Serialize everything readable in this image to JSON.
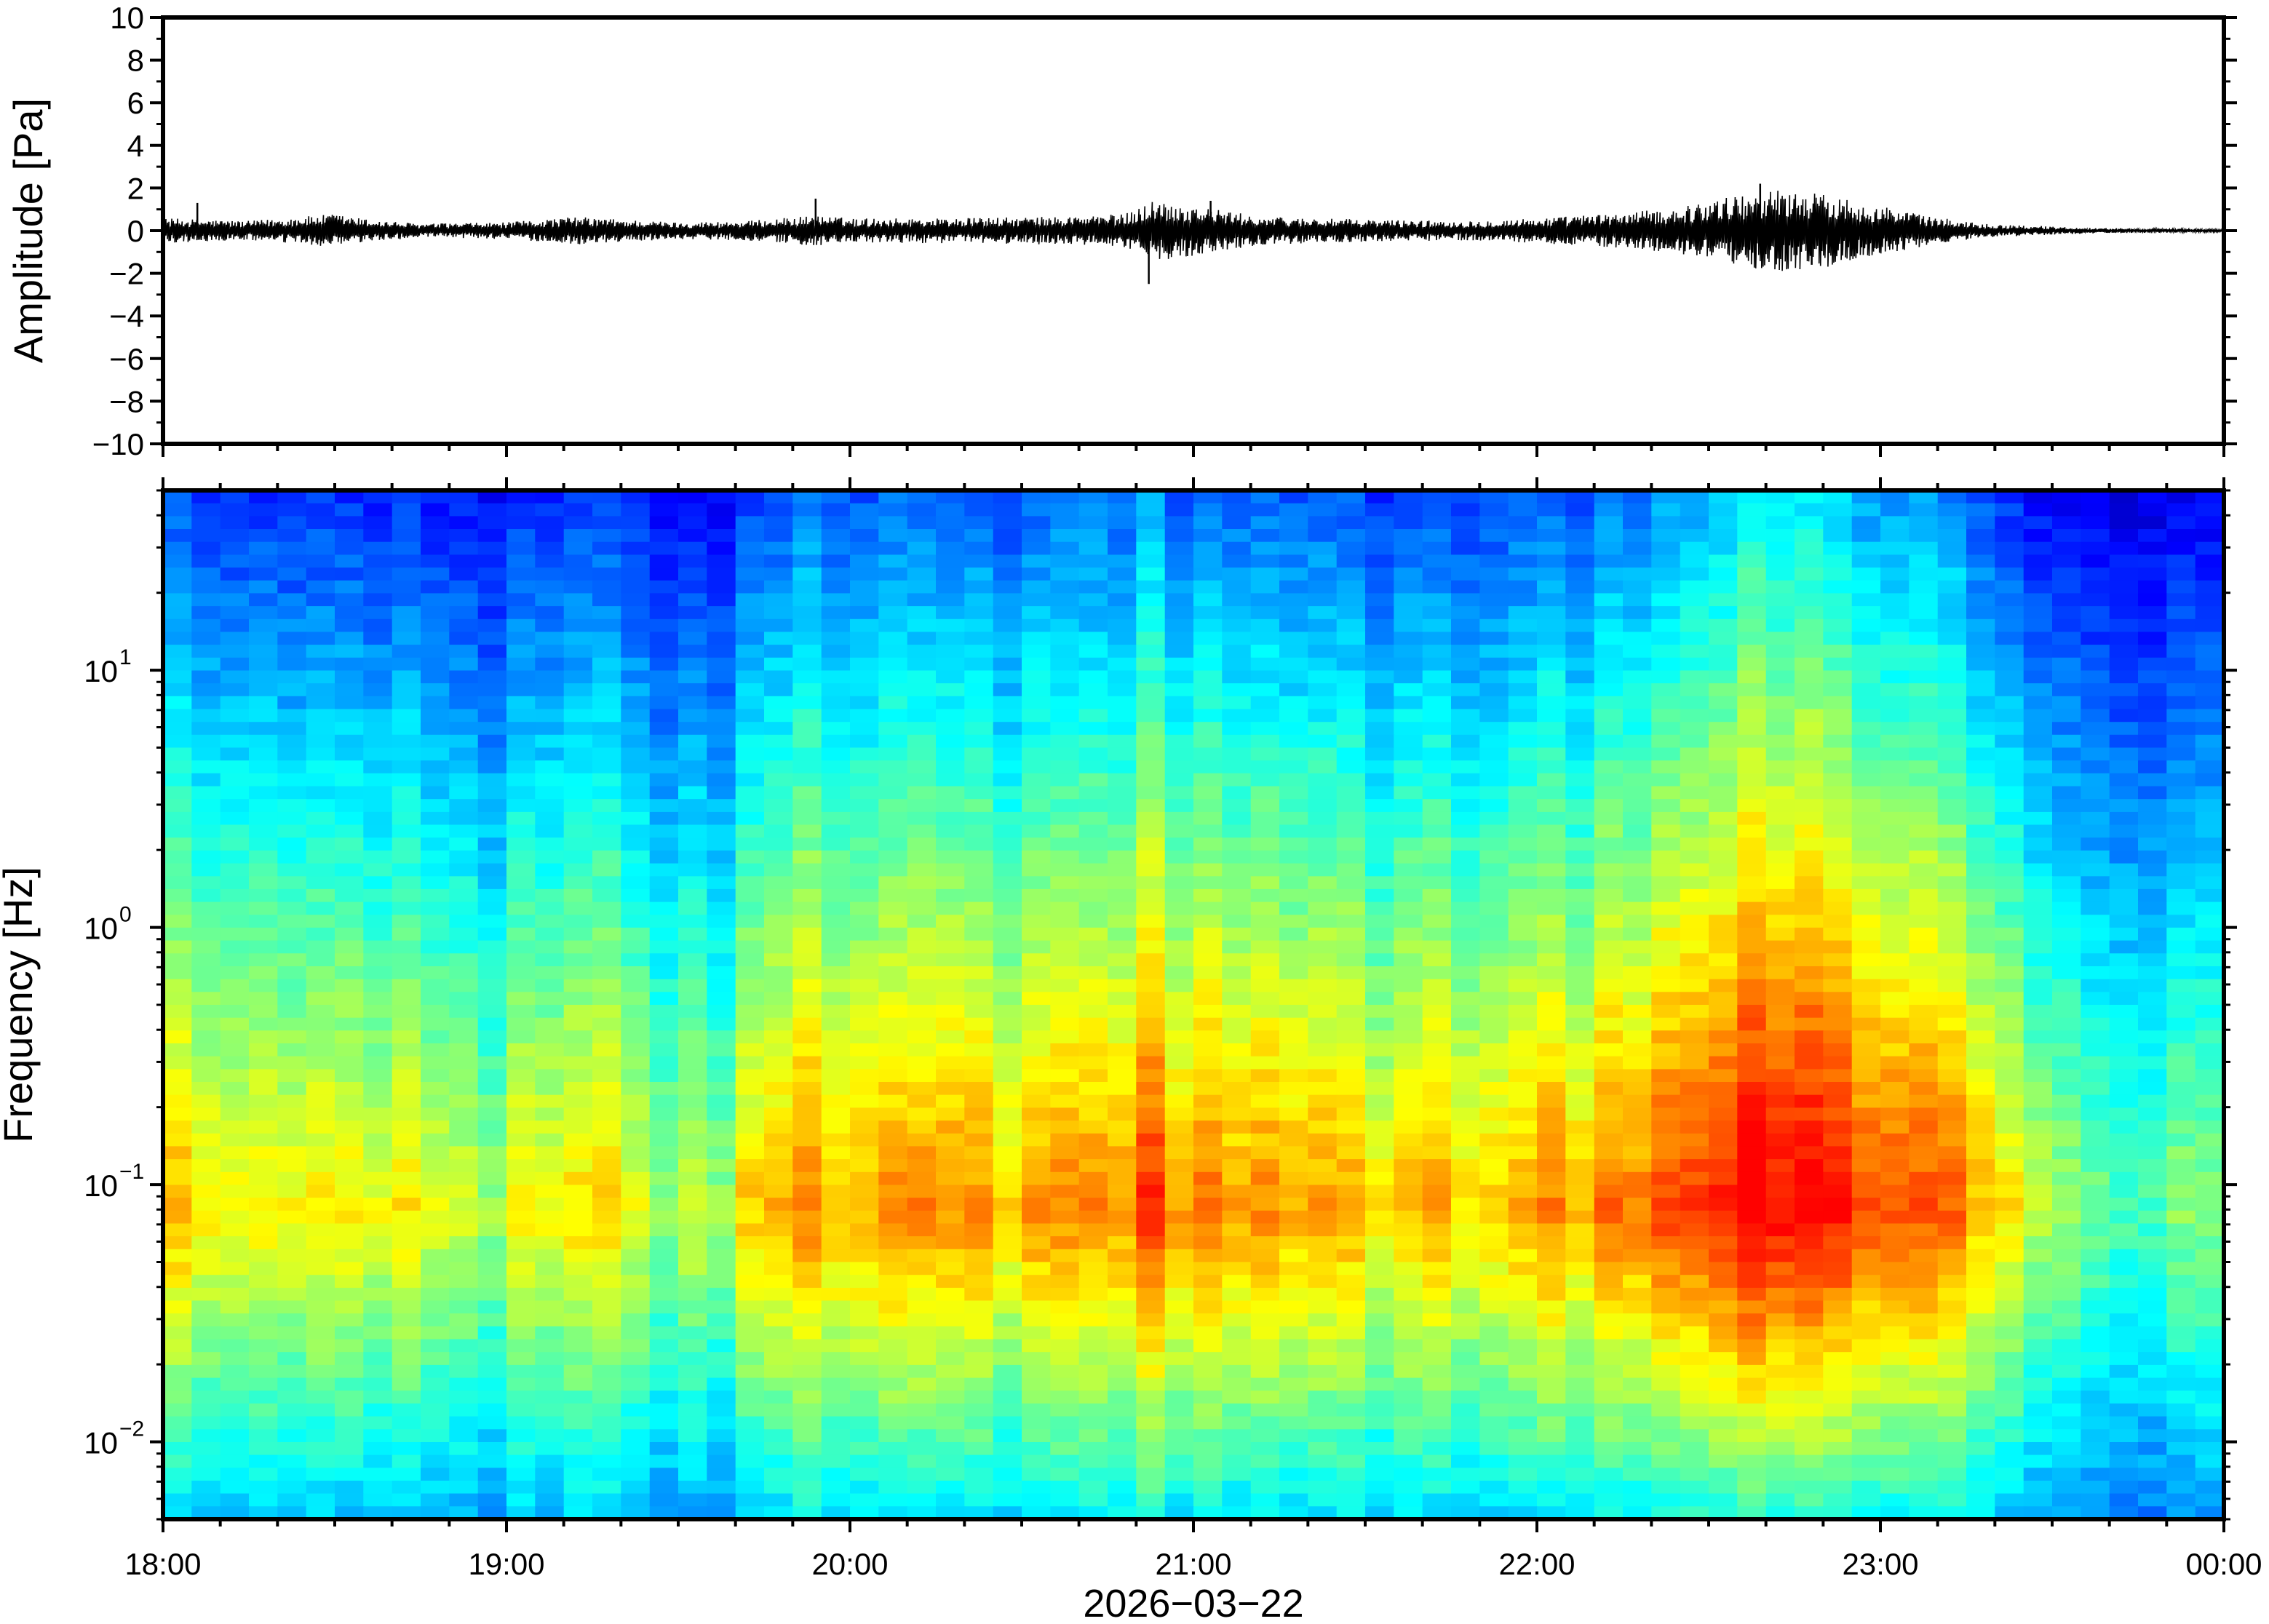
{
  "chart_data": [
    {
      "type": "line",
      "panel": "waveform",
      "title": "",
      "xlabel": "",
      "ylabel": "Amplitude [Pa]",
      "ylim": [
        -10,
        10
      ],
      "yticks": [
        {
          "value": 10,
          "label": "10"
        },
        {
          "value": 8,
          "label": "8"
        },
        {
          "value": 6,
          "label": "6"
        },
        {
          "value": 4,
          "label": "4"
        },
        {
          "value": 2,
          "label": "2"
        },
        {
          "value": 0,
          "label": "0"
        },
        {
          "value": -2,
          "label": "−2"
        },
        {
          "value": -4,
          "label": "−4"
        },
        {
          "value": -6,
          "label": "−6"
        },
        {
          "value": -8,
          "label": "−8"
        },
        {
          "value": -10,
          "label": "−10"
        }
      ],
      "xlim": [
        "18:00",
        "00:00"
      ],
      "envelope_x_hours": [
        18.0,
        18.25,
        18.5,
        18.6,
        18.75,
        19.0,
        19.2,
        19.5,
        19.7,
        19.9,
        20.0,
        20.3,
        20.6,
        20.8,
        20.88,
        21.0,
        21.2,
        21.5,
        21.8,
        22.0,
        22.2,
        22.4,
        22.55,
        22.7,
        22.85,
        23.0,
        23.15,
        23.3,
        23.6,
        24.0
      ],
      "envelope_amplitude_pa": [
        0.45,
        0.35,
        0.6,
        0.4,
        0.25,
        0.3,
        0.5,
        0.3,
        0.35,
        0.55,
        0.45,
        0.45,
        0.5,
        0.6,
        1.1,
        0.9,
        0.5,
        0.4,
        0.35,
        0.45,
        0.6,
        0.8,
        1.2,
        1.5,
        1.3,
        0.9,
        0.5,
        0.25,
        0.1,
        0.05
      ],
      "peaks": [
        {
          "x_hours": 18.1,
          "value": 1.3
        },
        {
          "x_hours": 19.9,
          "value": 1.5
        },
        {
          "x_hours": 20.87,
          "value": -2.5
        },
        {
          "x_hours": 21.05,
          "value": 1.4
        },
        {
          "x_hours": 22.65,
          "value": 2.2
        },
        {
          "x_hours": 22.8,
          "value": -1.6
        }
      ]
    },
    {
      "type": "heatmap",
      "panel": "spectrogram",
      "title": "",
      "xlabel": "2026−03−22",
      "ylabel": "Frequency [Hz]",
      "yscale": "log",
      "ylim": [
        0.005,
        50
      ],
      "yticks": [
        {
          "value": 10,
          "base": "10",
          "exp": "1"
        },
        {
          "value": 1,
          "base": "10",
          "exp": "0"
        },
        {
          "value": 0.1,
          "base": "10",
          "exp": "−1"
        },
        {
          "value": 0.01,
          "base": "10",
          "exp": "−2"
        }
      ],
      "xlim": [
        "18:00",
        "00:00"
      ],
      "xticks": [
        {
          "hour": 18,
          "label": "18:00"
        },
        {
          "hour": 19,
          "label": "19:00"
        },
        {
          "hour": 20,
          "label": "20:00"
        },
        {
          "hour": 21,
          "label": "21:00"
        },
        {
          "hour": 22,
          "label": "22:00"
        },
        {
          "hour": 23,
          "label": "23:00"
        },
        {
          "hour": 24,
          "label": "00:00"
        }
      ],
      "colormap": "jet",
      "colormap_stops": [
        "#00007f",
        "#0000ff",
        "#007fff",
        "#00ffff",
        "#7fff7f",
        "#ffff00",
        "#ff7f00",
        "#ff0000"
      ],
      "activity_profile": {
        "x_hours": [
          18.0,
          18.3,
          18.5,
          18.7,
          18.85,
          19.0,
          19.2,
          19.4,
          19.6,
          19.75,
          19.95,
          20.3,
          20.6,
          20.85,
          21.1,
          21.4,
          21.7,
          22.0,
          22.2,
          22.45,
          22.7,
          22.95,
          23.2,
          23.3,
          23.45,
          23.7,
          24.0
        ],
        "relative_energy": [
          0.55,
          0.45,
          0.62,
          0.42,
          0.3,
          0.38,
          0.55,
          0.35,
          0.3,
          0.55,
          0.7,
          0.65,
          0.62,
          0.8,
          0.68,
          0.58,
          0.55,
          0.6,
          0.72,
          0.88,
          1.0,
          0.9,
          0.7,
          0.55,
          0.3,
          0.18,
          0.12
        ]
      },
      "peak_energy_frequency_hz": 0.08
    }
  ]
}
